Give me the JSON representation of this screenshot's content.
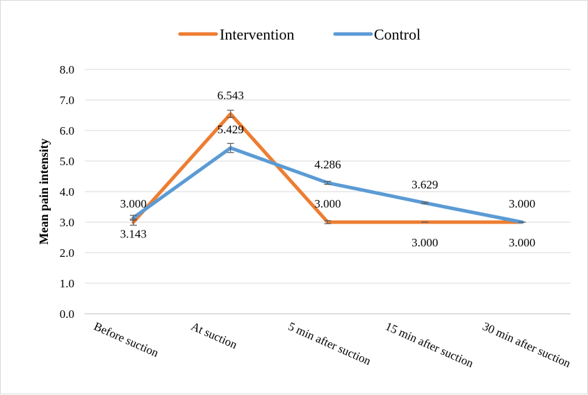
{
  "chart_data": {
    "type": "line",
    "title": "",
    "xlabel": "",
    "ylabel": "Mean pain intensity",
    "ylim": [
      0,
      8
    ],
    "yticks": [
      "0.0",
      "1.0",
      "2.0",
      "3.0",
      "4.0",
      "5.0",
      "6.0",
      "7.0",
      "8.0"
    ],
    "categories": [
      "Before suction",
      "At suction",
      "5 min after suction",
      "15 min after suction",
      "30 min after suction"
    ],
    "grid": true,
    "legend_position": "top",
    "series": [
      {
        "name": "Intervention",
        "color": "#ed7d31",
        "values": [
          3.0,
          6.543,
          3.0,
          3.0,
          3.0
        ],
        "labels": [
          "3.000",
          "6.543",
          "3.000",
          "3.000",
          "3.000"
        ],
        "error": [
          0.1,
          0.12,
          0.05,
          0.0,
          0.0
        ]
      },
      {
        "name": "Control",
        "color": "#5b9bd5",
        "values": [
          3.143,
          5.429,
          4.286,
          3.629,
          3.0
        ],
        "labels": [
          "3.143",
          "5.429",
          "4.286",
          "3.629",
          "3.000"
        ],
        "error": [
          0.08,
          0.15,
          0.05,
          0.03,
          0.0
        ]
      }
    ]
  },
  "colors": {
    "grid": "#d9d9d9",
    "axis": "#bfbfbf",
    "errorbar": "#595959"
  }
}
